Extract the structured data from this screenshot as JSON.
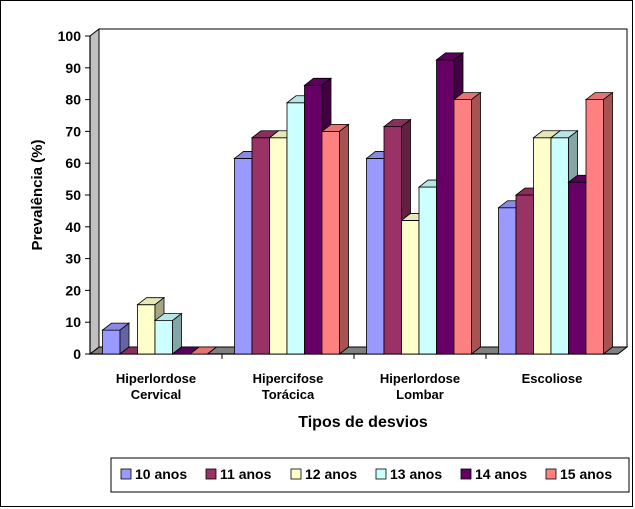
{
  "chart_data": {
    "type": "bar",
    "title": "",
    "xlabel": "Tipos de desvios",
    "ylabel": "Prevalência (%)",
    "ylim": [
      0,
      100
    ],
    "yticks": [
      0,
      10,
      20,
      30,
      40,
      50,
      60,
      70,
      80,
      90,
      100
    ],
    "categories": [
      [
        "Hiperlordose",
        "Cervical"
      ],
      [
        "Hipercifose",
        "Torácica"
      ],
      [
        "Hiperlordose",
        "Lombar"
      ],
      [
        "Escoliose"
      ]
    ],
    "series": [
      {
        "name": "10 anos",
        "color": "#9999ff",
        "values": [
          7.5,
          61.5,
          61.5,
          46
        ]
      },
      {
        "name": "11 anos",
        "color": "#993366",
        "values": [
          0,
          68,
          71.5,
          50
        ]
      },
      {
        "name": "12 anos",
        "color": "#ffffcc",
        "values": [
          15.5,
          68,
          42,
          68
        ]
      },
      {
        "name": "13 anos",
        "color": "#ccffff",
        "values": [
          10.5,
          79,
          52.5,
          68
        ]
      },
      {
        "name": "14 anos",
        "color": "#660066",
        "values": [
          0,
          84.5,
          92.5,
          54
        ]
      },
      {
        "name": "15 anos",
        "color": "#ff8080",
        "values": [
          0,
          70,
          80,
          80
        ]
      }
    ],
    "legend_position": "bottom",
    "grid": false,
    "three_d": true
  }
}
